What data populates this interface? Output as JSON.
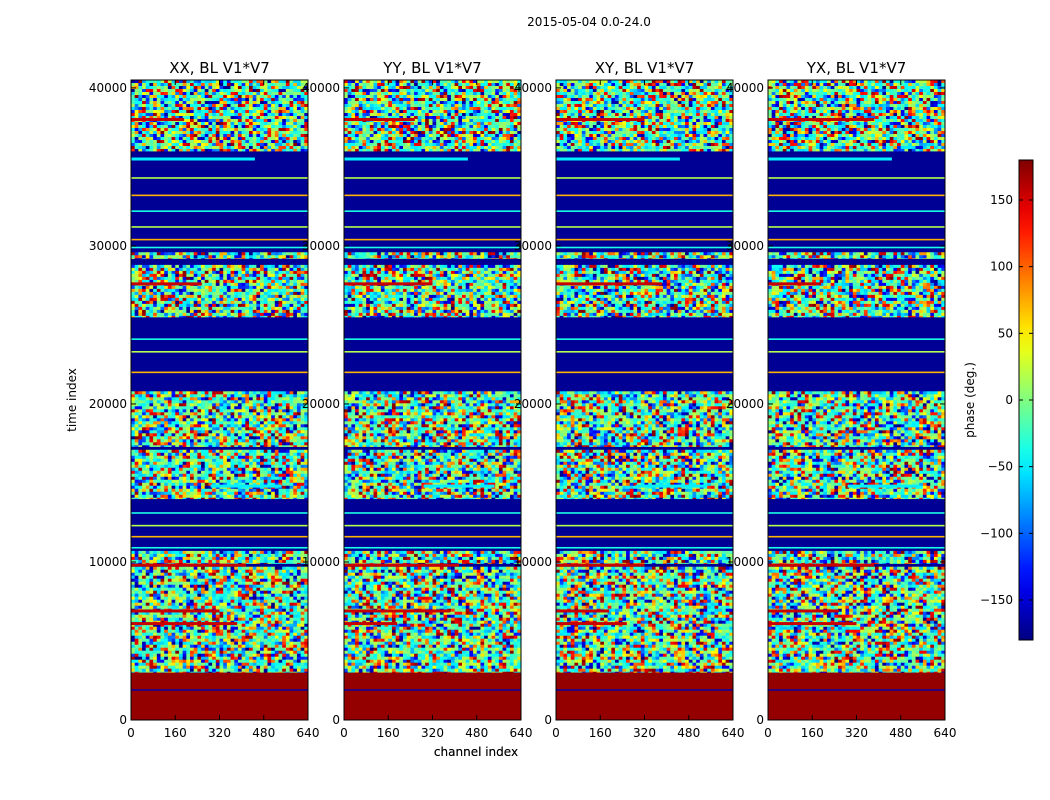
{
  "figure_title": "2015-05-04 0.0-24.0",
  "chart_data": [
    {
      "type": "heatmap",
      "title": "XX, BL V1*V7",
      "xlabel": "channel index",
      "ylabel": "time index",
      "xlim": [
        0,
        640
      ],
      "ylim": [
        0,
        40500
      ],
      "xticks": [
        0,
        160,
        320,
        480,
        640
      ],
      "yticks": [
        0,
        10000,
        20000,
        30000,
        40000
      ]
    },
    {
      "type": "heatmap",
      "title": "YY, BL V1*V7",
      "xlabel": "channel index",
      "xlim": [
        0,
        640
      ],
      "ylim": [
        0,
        40500
      ],
      "xticks": [
        0,
        160,
        320,
        480,
        640
      ],
      "yticks": [
        0,
        10000,
        20000,
        30000,
        40000
      ]
    },
    {
      "type": "heatmap",
      "title": "XY, BL V1*V7",
      "xlim": [
        0,
        640
      ],
      "ylim": [
        0,
        40500
      ],
      "xticks": [
        0,
        160,
        320,
        480,
        640
      ],
      "yticks": [
        0,
        10000,
        20000,
        30000,
        40000
      ]
    },
    {
      "type": "heatmap",
      "title": "YX, BL V1*V7",
      "xlim": [
        0,
        640
      ],
      "ylim": [
        0,
        40500
      ],
      "xticks": [
        0,
        160,
        320,
        480,
        640
      ],
      "yticks": [
        0,
        10000,
        20000,
        30000,
        40000
      ]
    }
  ],
  "colorbar": {
    "label": "phase (deg.)",
    "range": [
      -180,
      180
    ],
    "ticks": [
      150,
      100,
      50,
      0,
      -50,
      -100,
      -150
    ],
    "colormap": "jet",
    "colors": [
      "#00007f",
      "#0000ff",
      "#007fff",
      "#00ffff",
      "#7fff7f",
      "#ffff00",
      "#ff7f00",
      "#ff0000",
      "#7f0000"
    ]
  },
  "bands": {
    "noise": [
      [
        3000,
        9700
      ],
      [
        9900,
        10700
      ],
      [
        14000,
        17100
      ],
      [
        17300,
        20800
      ],
      [
        25500,
        28800
      ],
      [
        29200,
        29600
      ],
      [
        36000,
        40500
      ]
    ],
    "blank": [
      [
        10700,
        14000
      ],
      [
        20800,
        25500
      ],
      [
        30200,
        35000
      ]
    ],
    "solid_red": [
      0,
      3000
    ],
    "red_streaks": [
      9800,
      27600,
      6900,
      6100,
      38000
    ],
    "cyan_streaks": [
      35500,
      14800
    ],
    "thin_lines": [
      1900,
      10900,
      11600,
      12300,
      13100,
      22000,
      23300,
      24100,
      30400,
      31200,
      32200,
      33200,
      34300,
      29900
    ]
  }
}
